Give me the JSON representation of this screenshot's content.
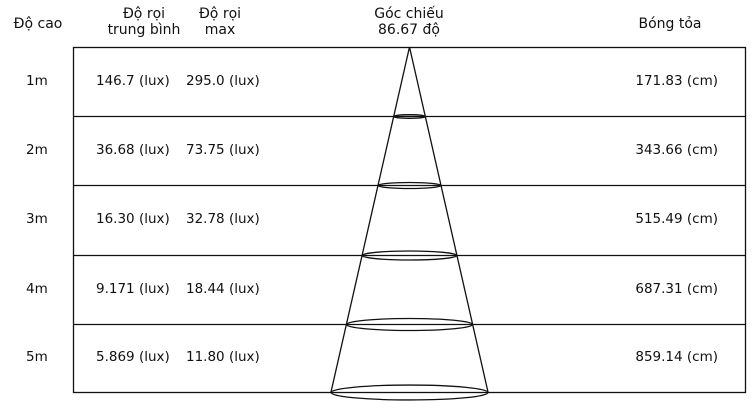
{
  "headers": {
    "height": "Độ cao",
    "avg_line1": "Độ rọi",
    "avg_line2": "trung bình",
    "max_line1": "Độ rọi",
    "max_line2": "max",
    "angle_line1": "Góc chiếu",
    "angle_line2": "86.67 độ",
    "spread": "Bóng tỏa"
  },
  "rows": [
    {
      "height": "1m",
      "avg": "146.7 (lux)",
      "max": "295.0 (lux)",
      "spread": "171.83 (cm)"
    },
    {
      "height": "2m",
      "avg": "36.68 (lux)",
      "max": "73.75 (lux)",
      "spread": "343.66 (cm)"
    },
    {
      "height": "3m",
      "avg": "16.30 (lux)",
      "max": "32.78 (lux)",
      "spread": "515.49 (cm)"
    },
    {
      "height": "4m",
      "avg": "9.171 (lux)",
      "max": "18.44 (lux)",
      "spread": "687.31 (cm)"
    },
    {
      "height": "5m",
      "avg": "5.869 (lux)",
      "max": "11.80 (lux)",
      "spread": "859.14 (cm)"
    }
  ]
}
